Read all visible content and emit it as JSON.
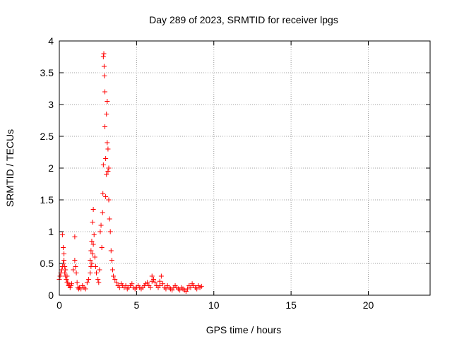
{
  "chart_data": {
    "type": "scatter",
    "title": "Day 289 of 2023, SRMTID for receiver lpgs",
    "xlabel": "GPS time / hours",
    "ylabel": "SRMTID / TECUs",
    "xlim": [
      0,
      24
    ],
    "ylim": [
      0,
      4
    ],
    "xticks": [
      0,
      5,
      10,
      15,
      20
    ],
    "xtick_labels": [
      "0",
      "5",
      "10",
      "15",
      "20"
    ],
    "yticks": [
      0,
      0.5,
      1,
      1.5,
      2,
      2.5,
      3,
      3.5,
      4
    ],
    "ytick_labels": [
      "0",
      "0.5",
      "1",
      "1.5",
      "2",
      "2.5",
      "3",
      "3.5",
      "4"
    ],
    "grid": true,
    "marker": "+",
    "color": "#ff0000",
    "series": [
      {
        "name": "lpgs",
        "x": [
          0.0,
          0.05,
          0.1,
          0.15,
          0.2,
          0.2,
          0.25,
          0.25,
          0.3,
          0.3,
          0.35,
          0.35,
          0.4,
          0.4,
          0.45,
          0.5,
          0.5,
          0.55,
          0.6,
          0.65,
          0.7,
          0.75,
          0.8,
          0.9,
          1.0,
          1.0,
          1.05,
          1.1,
          1.15,
          1.2,
          1.25,
          1.3,
          1.4,
          1.5,
          1.6,
          1.7,
          1.8,
          1.9,
          2.0,
          2.0,
          2.05,
          2.05,
          2.1,
          2.1,
          2.15,
          2.15,
          2.2,
          2.2,
          2.25,
          2.3,
          2.35,
          2.4,
          2.5,
          2.55,
          2.6,
          2.65,
          2.7,
          2.75,
          2.8,
          2.82,
          2.85,
          2.85,
          2.88,
          2.9,
          2.92,
          2.95,
          2.95,
          3.0,
          3.0,
          3.05,
          3.05,
          3.1,
          3.1,
          3.15,
          3.15,
          3.2,
          3.2,
          3.25,
          3.3,
          3.35,
          3.4,
          3.45,
          3.5,
          3.6,
          3.7,
          3.8,
          3.9,
          4.0,
          4.1,
          4.2,
          4.3,
          4.4,
          4.5,
          4.6,
          4.7,
          4.8,
          4.9,
          5.0,
          5.1,
          5.2,
          5.3,
          5.4,
          5.5,
          5.6,
          5.7,
          5.8,
          5.9,
          6.0,
          6.0,
          6.1,
          6.2,
          6.3,
          6.4,
          6.5,
          6.5,
          6.6,
          6.7,
          6.8,
          6.9,
          7.0,
          7.1,
          7.2,
          7.3,
          7.4,
          7.5,
          7.6,
          7.7,
          7.8,
          7.9,
          8.0,
          8.1,
          8.2,
          8.3,
          8.4,
          8.5,
          8.6,
          8.7,
          8.8,
          8.9,
          9.0,
          9.1,
          9.2
        ],
        "y": [
          0.25,
          0.3,
          0.35,
          0.4,
          0.45,
          0.95,
          0.5,
          0.75,
          0.55,
          0.65,
          0.45,
          0.35,
          0.4,
          0.3,
          0.25,
          0.3,
          0.2,
          0.2,
          0.15,
          0.15,
          0.12,
          0.15,
          0.18,
          0.4,
          0.92,
          0.55,
          0.45,
          0.35,
          0.2,
          0.12,
          0.1,
          0.12,
          0.1,
          0.15,
          0.12,
          0.1,
          0.2,
          0.25,
          0.55,
          0.35,
          0.7,
          0.45,
          0.85,
          0.5,
          1.15,
          0.65,
          1.35,
          0.8,
          0.95,
          0.6,
          0.45,
          0.35,
          0.25,
          0.2,
          0.4,
          1.0,
          1.1,
          0.75,
          1.3,
          1.6,
          2.05,
          3.75,
          3.8,
          3.6,
          3.45,
          3.2,
          2.65,
          2.15,
          1.55,
          1.9,
          2.85,
          2.4,
          3.05,
          1.95,
          2.3,
          1.5,
          2.0,
          1.2,
          1.0,
          0.7,
          0.55,
          0.4,
          0.3,
          0.25,
          0.2,
          0.15,
          0.12,
          0.18,
          0.15,
          0.12,
          0.15,
          0.1,
          0.12,
          0.15,
          0.18,
          0.12,
          0.1,
          0.12,
          0.15,
          0.12,
          0.1,
          0.12,
          0.15,
          0.18,
          0.2,
          0.15,
          0.12,
          0.22,
          0.3,
          0.25,
          0.2,
          0.15,
          0.12,
          0.15,
          0.22,
          0.3,
          0.18,
          0.12,
          0.1,
          0.15,
          0.12,
          0.1,
          0.08,
          0.12,
          0.15,
          0.12,
          0.1,
          0.08,
          0.12,
          0.1,
          0.08,
          0.06,
          0.1,
          0.15,
          0.12,
          0.18,
          0.15,
          0.12,
          0.1,
          0.15,
          0.12,
          0.14
        ]
      }
    ]
  }
}
